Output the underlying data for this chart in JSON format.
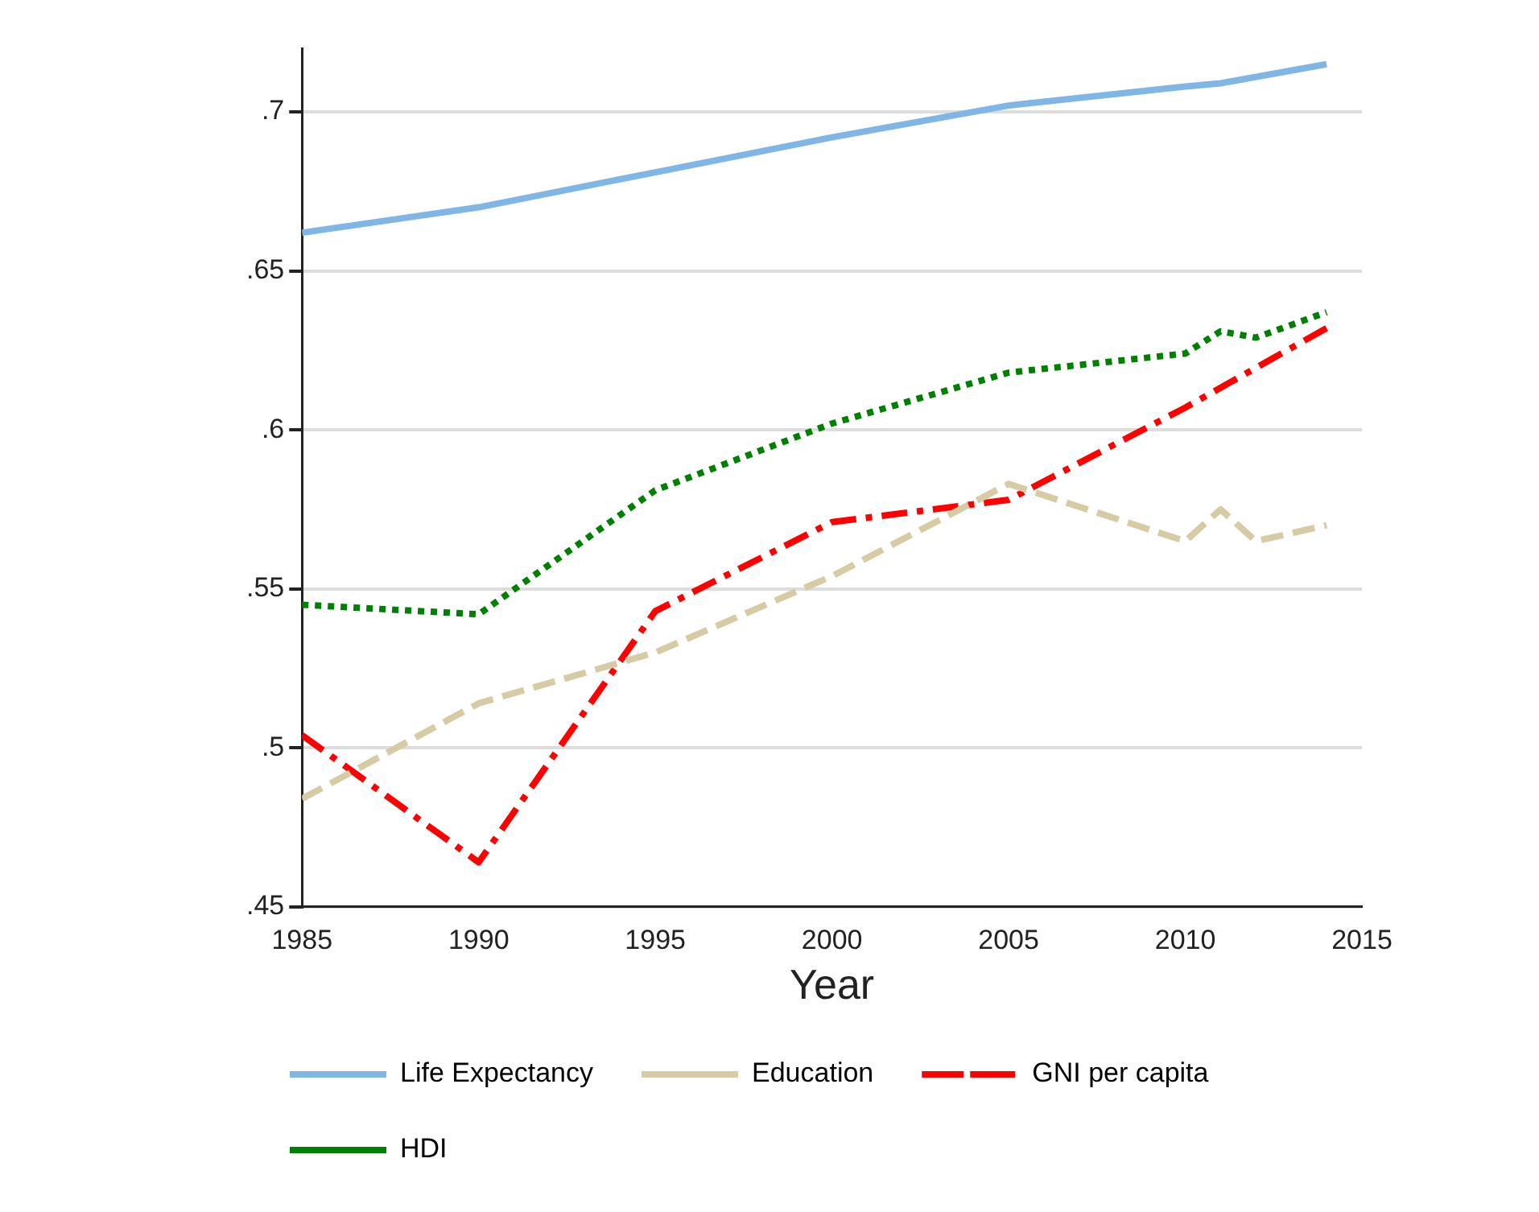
{
  "chart_data": {
    "type": "line",
    "xlabel": "Year",
    "xlim": [
      1985,
      2015
    ],
    "xticks": [
      1985,
      1990,
      1995,
      2000,
      2005,
      2010,
      2015
    ],
    "ylim": [
      0.45,
      0.72
    ],
    "yticks": [
      {
        "value": 0.45,
        "label": ".45"
      },
      {
        "value": 0.5,
        "label": ".5"
      },
      {
        "value": 0.55,
        "label": ".55"
      },
      {
        "value": 0.6,
        "label": ".6"
      },
      {
        "value": 0.65,
        "label": ".65"
      },
      {
        "value": 0.7,
        "label": ".7"
      }
    ],
    "grid": "y",
    "legend": "bottom",
    "marker": "none",
    "series": [
      {
        "name": "Life Expectancy",
        "color": "#7fb6e6",
        "line_style": "solid",
        "x": [
          1985,
          1990,
          1995,
          2000,
          2005,
          2010,
          2011,
          2014
        ],
        "values": [
          0.662,
          0.67,
          0.681,
          0.692,
          0.702,
          0.708,
          0.709,
          0.715
        ]
      },
      {
        "name": "Education",
        "color": "#d6cba4",
        "line_style": "dashed",
        "x": [
          1985,
          1990,
          1995,
          2000,
          2005,
          2010,
          2011,
          2012,
          2014
        ],
        "values": [
          0.484,
          0.514,
          0.53,
          0.554,
          0.583,
          0.565,
          0.575,
          0.565,
          0.57
        ]
      },
      {
        "name": "GNI per capita",
        "color": "#ff0000",
        "line_style": "dashdot",
        "x": [
          1985,
          1990,
          1995,
          2000,
          2005,
          2010,
          2014
        ],
        "values": [
          0.504,
          0.464,
          0.543,
          0.571,
          0.578,
          0.607,
          0.632
        ]
      },
      {
        "name": "HDI",
        "color": "#008000",
        "line_style": "dotted",
        "x": [
          1985,
          1990,
          1995,
          2000,
          2005,
          2010,
          2011,
          2012,
          2014
        ],
        "values": [
          0.545,
          0.542,
          0.581,
          0.602,
          0.618,
          0.624,
          0.631,
          0.629,
          0.637
        ]
      }
    ]
  }
}
